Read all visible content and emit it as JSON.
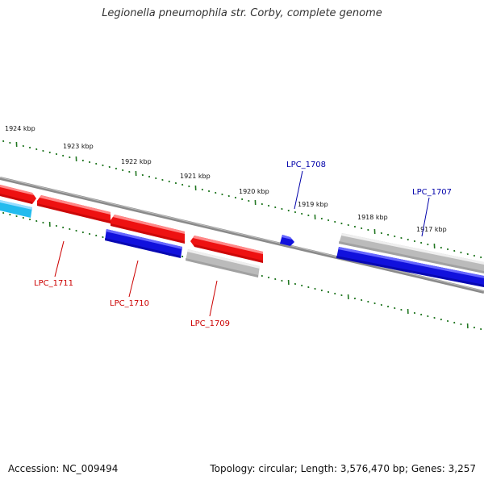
{
  "title": "Legionella pneumophila str. Corby, complete genome",
  "footer": {
    "accession": "Accession: NC_009494",
    "summary": "Topology: circular; Length: 3,576,470 bp; Genes: 3,257"
  },
  "colors": {
    "forward_gene": "#ee1111",
    "reverse_gene": "#1111dd",
    "other_gene": "#bbbbbb",
    "cyan_gene": "#22bbee",
    "tick": "#227722",
    "backbone": "#888888",
    "forward_label": "#cc0000",
    "reverse_label": "#0000aa"
  },
  "scale": {
    "unit": "kbp",
    "major_ticks_kbp": [
      1924,
      1923,
      1922,
      1921,
      1920,
      1919,
      1918,
      1917
    ]
  },
  "genes": [
    {
      "id": "LPC_1711",
      "label": "LPC_1711",
      "strand": "forward",
      "color": "forward_gene",
      "start_kbp": 1923.1,
      "end_kbp": 1922.55,
      "labelled": true
    },
    {
      "id": "LPC_1711_prev",
      "label": "",
      "strand": "forward",
      "color": "forward_gene",
      "start_kbp": 1924.25,
      "end_kbp": 1923.55,
      "labelled": false
    },
    {
      "id": "LPC_1710",
      "label": "LPC_1710",
      "strand": "forward",
      "color": "forward_gene",
      "start_kbp": 1922.5,
      "end_kbp": 1921.55,
      "labelled": true
    },
    {
      "id": "LPC_1709",
      "label": "LPC_1709",
      "strand": "forward",
      "color": "forward_gene",
      "start_kbp": 1921.25,
      "end_kbp": 1920.35,
      "labelled": true
    },
    {
      "id": "LPC_1708",
      "label": "LPC_1708",
      "strand": "reverse",
      "color": "reverse_gene",
      "start_kbp": 1919.7,
      "end_kbp": 1919.55,
      "labelled": true
    },
    {
      "id": "LPC_1707",
      "label": "LPC_1707",
      "strand": "reverse",
      "color": "other_gene",
      "start_kbp": 1918.75,
      "end_kbp": 1916.5,
      "labelled": true
    }
  ]
}
